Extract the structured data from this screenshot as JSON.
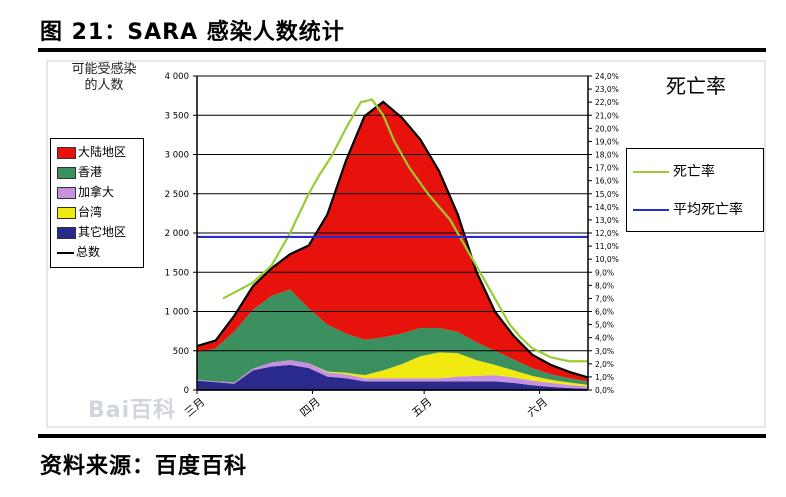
{
  "figure_title": "图 21：SARA 感染人数统计",
  "source_text": "资料来源：百度百科",
  "watermark_text": "Bai百科",
  "chart_data": {
    "type": "area",
    "left_axis_title_line1": "可能受感染",
    "left_axis_title_line2": "的人数",
    "right_axis_title": "死亡率",
    "ylim": [
      0,
      4000
    ],
    "y_ticks": [
      "0",
      "500",
      "1 000",
      "1 500",
      "2 000",
      "2 500",
      "3 000",
      "3 500",
      "4 000"
    ],
    "y2lim": [
      0,
      24
    ],
    "y2_ticks": [
      "0,0%",
      "1,0%",
      "2,0%",
      "3,0%",
      "4,0%",
      "5,0%",
      "6,0%",
      "7,0%",
      "8,0%",
      "9,0%",
      "10,0%",
      "11,0%",
      "12,0%",
      "13,0%",
      "14,0%",
      "15,0%",
      "16,0%",
      "17,0%",
      "18,0%",
      "19,0%",
      "20,0%",
      "21,0%",
      "22,0%",
      "23,0%",
      "24,0%"
    ],
    "x_tick_labels": [
      {
        "label": "三月",
        "x": 0
      },
      {
        "label": "四月",
        "x": 31
      },
      {
        "label": "五月",
        "x": 61
      },
      {
        "label": "六月",
        "x": 92
      }
    ],
    "x_range": [
      0,
      105
    ],
    "grid": true,
    "legend_left": {
      "placement": "left",
      "items": [
        {
          "name": "大陆地区",
          "color": "#e8120c"
        },
        {
          "name": "香港",
          "color": "#3c9060"
        },
        {
          "name": "加拿大",
          "color": "#c890e0"
        },
        {
          "name": "台湾",
          "color": "#f0ea10"
        },
        {
          "name": "其它地区",
          "color": "#2a2a8c"
        },
        {
          "name": "总数",
          "color": "#000000",
          "line": true
        }
      ]
    },
    "legend_right": {
      "placement": "right",
      "items": [
        {
          "name": "死亡率",
          "color": "#99cc33"
        },
        {
          "name": "平均死亡率",
          "color": "#2a2ad0"
        }
      ]
    },
    "x": [
      0,
      5,
      10,
      15,
      20,
      25,
      30,
      35,
      40,
      45,
      50,
      55,
      60,
      65,
      70,
      75,
      80,
      85,
      90,
      95,
      100,
      105
    ],
    "series": [
      {
        "name": "其它地区",
        "color": "#2a2a8c",
        "values": [
          120,
          100,
          80,
          250,
          300,
          320,
          280,
          170,
          150,
          110,
          110,
          110,
          110,
          110,
          110,
          110,
          110,
          90,
          60,
          40,
          25,
          15
        ]
      },
      {
        "name": "加拿大",
        "color": "#c890e0",
        "values": [
          10,
          10,
          15,
          20,
          50,
          60,
          60,
          55,
          50,
          40,
          40,
          40,
          40,
          40,
          60,
          70,
          80,
          70,
          60,
          50,
          40,
          30
        ]
      },
      {
        "name": "台湾",
        "color": "#f0ea10",
        "values": [
          0,
          0,
          0,
          0,
          0,
          0,
          0,
          10,
          20,
          40,
          100,
          180,
          280,
          330,
          300,
          200,
          130,
          90,
          60,
          40,
          30,
          20
        ]
      },
      {
        "name": "香港",
        "color": "#3c9060",
        "values": [
          350,
          420,
          650,
          750,
          850,
          900,
          700,
          600,
          500,
          450,
          420,
          390,
          360,
          310,
          270,
          230,
          180,
          140,
          100,
          70,
          55,
          45
        ]
      },
      {
        "name": "大陆地区",
        "color": "#e8120c",
        "values": [
          80,
          100,
          200,
          300,
          350,
          450,
          800,
          1400,
          2200,
          2850,
          3000,
          2750,
          2400,
          2000,
          1500,
          900,
          500,
          300,
          170,
          120,
          80,
          50
        ]
      }
    ],
    "total": {
      "name": "总数",
      "values": [
        560,
        630,
        945,
        1320,
        1550,
        1730,
        1840,
        2235,
        2920,
        3490,
        3670,
        3470,
        3190,
        2790,
        2240,
        1510,
        1000,
        690,
        450,
        320,
        230,
        160
      ]
    },
    "death_rate": {
      "name": "死亡率",
      "x": [
        7,
        15,
        20,
        25,
        30,
        33,
        36,
        40,
        44,
        47,
        50,
        53,
        57,
        62,
        68,
        74,
        80,
        84,
        87,
        90,
        95,
        100,
        105
      ],
      "values": [
        7.0,
        8.2,
        9.5,
        12,
        15,
        16.5,
        17.8,
        20,
        22,
        22.2,
        21,
        19,
        17,
        15,
        13,
        10,
        7,
        5,
        4,
        3.2,
        2.5,
        2.2,
        2.2
      ]
    },
    "avg_death_rate": {
      "name": "平均死亡率",
      "value": 11.7
    }
  }
}
